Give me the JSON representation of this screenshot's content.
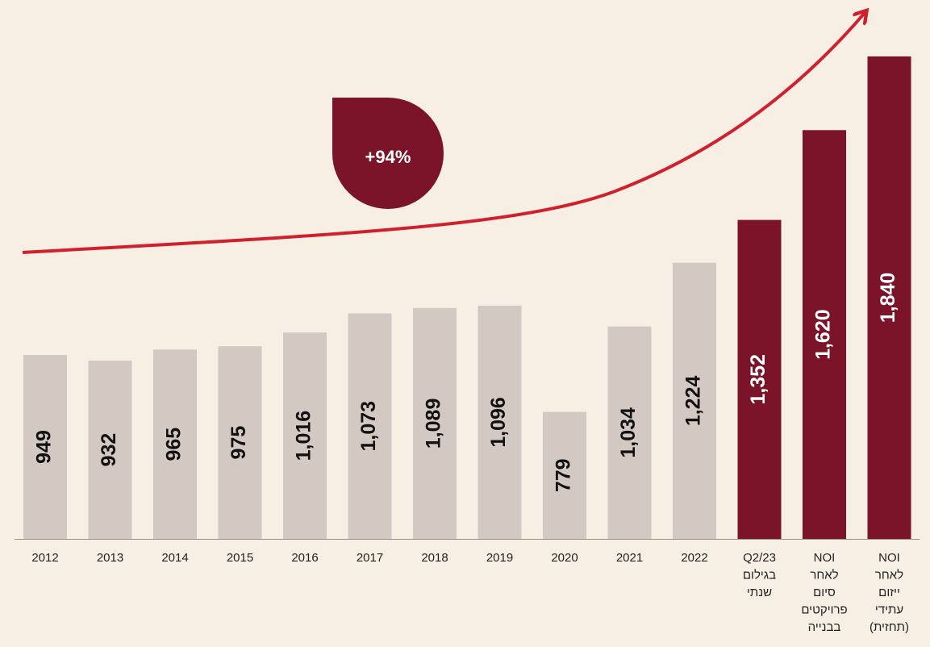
{
  "chart_data": {
    "type": "bar",
    "annotation": "+94%",
    "categories": [
      "2012",
      "2013",
      "2014",
      "2015",
      "2016",
      "2017",
      "2018",
      "2019",
      "2020",
      "2021",
      "2022",
      [
        "Q2/23",
        "בגילום",
        "שנתי"
      ],
      [
        "NOI",
        "לאחר",
        "סיום",
        "פרויקטים",
        "בבנייה"
      ],
      [
        "NOI",
        "לאחר",
        "ייזום",
        "עתידי",
        "(תחזית)"
      ]
    ],
    "values": [
      949,
      932,
      965,
      975,
      1016,
      1073,
      1089,
      1096,
      779,
      1034,
      1224,
      1352,
      1620,
      1840
    ],
    "value_labels": [
      "949",
      "932",
      "965",
      "975",
      "1,016",
      "1,073",
      "1,089",
      "1,096",
      "779",
      "1,034",
      "1,224",
      "1,352",
      "1,620",
      "1,840"
    ],
    "colors": [
      "#d3c9c2",
      "#d3c9c2",
      "#d3c9c2",
      "#d3c9c2",
      "#d3c9c2",
      "#d3c9c2",
      "#d3c9c2",
      "#d3c9c2",
      "#d3c9c2",
      "#d3c9c2",
      "#d3c9c2",
      "#7b1429",
      "#7b1429",
      "#7b1429"
    ],
    "label_colors": [
      "#111111",
      "#111111",
      "#111111",
      "#111111",
      "#111111",
      "#111111",
      "#111111",
      "#111111",
      "#111111",
      "#111111",
      "#111111",
      "#ffffff",
      "#ffffff",
      "#ffffff"
    ],
    "ylim": [
      400,
      1900
    ]
  }
}
